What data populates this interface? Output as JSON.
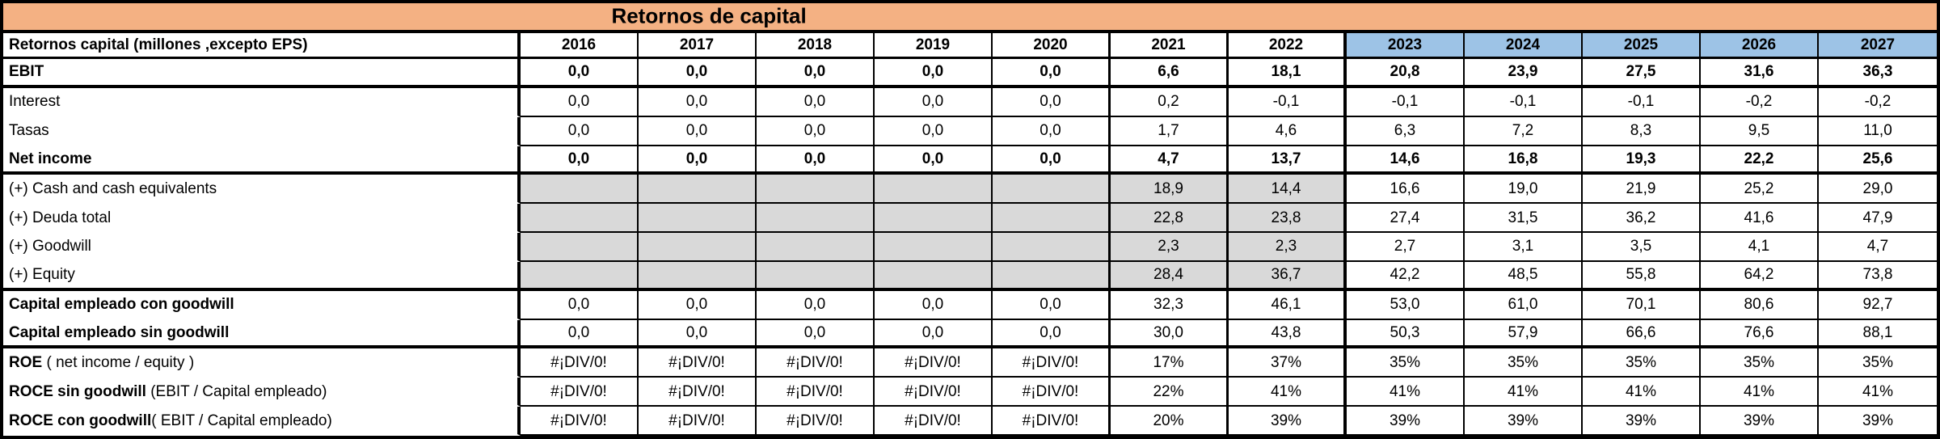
{
  "title": "Retornos de capital",
  "colors": {
    "title_bg": "#F4B183",
    "historic_year_bg": "#00B0F0",
    "forecast_year_bg": "#9DC3E6",
    "shaded_cell_bg": "#D9D9D9",
    "border": "#000000"
  },
  "table": {
    "header_label": "Retornos capital (millones ,excepto EPS)",
    "years": [
      "2016",
      "2017",
      "2018",
      "2019",
      "2020",
      "2021",
      "2022",
      "2023",
      "2024",
      "2025",
      "2026",
      "2027"
    ],
    "rows": [
      {
        "label_bold": "EBIT",
        "label_rest": "",
        "bold_values": true,
        "shaded": false,
        "thick_bottom": true,
        "values": [
          "0,0",
          "0,0",
          "0,0",
          "0,0",
          "0,0",
          "6,6",
          "18,1",
          "20,8",
          "23,9",
          "27,5",
          "31,6",
          "36,3"
        ]
      },
      {
        "label_bold": "",
        "label_rest": "Interest",
        "bold_values": false,
        "shaded": false,
        "thick_bottom": false,
        "values": [
          "0,0",
          "0,0",
          "0,0",
          "0,0",
          "0,0",
          "0,2",
          "-0,1",
          "-0,1",
          "-0,1",
          "-0,1",
          "-0,2",
          "-0,2"
        ]
      },
      {
        "label_bold": "",
        "label_rest": "Tasas",
        "bold_values": false,
        "shaded": false,
        "thick_bottom": false,
        "values": [
          "0,0",
          "0,0",
          "0,0",
          "0,0",
          "0,0",
          "1,7",
          "4,6",
          "6,3",
          "7,2",
          "8,3",
          "9,5",
          "11,0"
        ]
      },
      {
        "label_bold": "Net income",
        "label_rest": "",
        "bold_values": true,
        "shaded": false,
        "thick_bottom": true,
        "values": [
          "0,0",
          "0,0",
          "0,0",
          "0,0",
          "0,0",
          "4,7",
          "13,7",
          "14,6",
          "16,8",
          "19,3",
          "22,2",
          "25,6"
        ]
      },
      {
        "label_bold": "",
        "label_rest": "(+) Cash and cash equivalents",
        "bold_values": false,
        "shaded": true,
        "thick_bottom": false,
        "values": [
          "",
          "",
          "",
          "",
          "",
          "18,9",
          "14,4",
          "16,6",
          "19,0",
          "21,9",
          "25,2",
          "29,0"
        ]
      },
      {
        "label_bold": "",
        "label_rest": "(+) Deuda total",
        "bold_values": false,
        "shaded": true,
        "thick_bottom": false,
        "values": [
          "",
          "",
          "",
          "",
          "",
          "22,8",
          "23,8",
          "27,4",
          "31,5",
          "36,2",
          "41,6",
          "47,9"
        ]
      },
      {
        "label_bold": "",
        "label_rest": "(+) Goodwill",
        "bold_values": false,
        "shaded": true,
        "thick_bottom": false,
        "values": [
          "",
          "",
          "",
          "",
          "",
          "2,3",
          "2,3",
          "2,7",
          "3,1",
          "3,5",
          "4,1",
          "4,7"
        ]
      },
      {
        "label_bold": "",
        "label_rest": "(+) Equity",
        "bold_values": false,
        "shaded": true,
        "thick_bottom": true,
        "values": [
          "",
          "",
          "",
          "",
          "",
          "28,4",
          "36,7",
          "42,2",
          "48,5",
          "55,8",
          "64,2",
          "73,8"
        ]
      },
      {
        "label_bold": "Capital empleado con goodwill",
        "label_rest": "",
        "bold_values": false,
        "shaded": false,
        "thick_bottom": false,
        "values": [
          "0,0",
          "0,0",
          "0,0",
          "0,0",
          "0,0",
          "32,3",
          "46,1",
          "53,0",
          "61,0",
          "70,1",
          "80,6",
          "92,7"
        ]
      },
      {
        "label_bold": "Capital empleado sin goodwill",
        "label_rest": "",
        "bold_values": false,
        "shaded": false,
        "thick_bottom": true,
        "values": [
          "0,0",
          "0,0",
          "0,0",
          "0,0",
          "0,0",
          "30,0",
          "43,8",
          "50,3",
          "57,9",
          "66,6",
          "76,6",
          "88,1"
        ]
      },
      {
        "label_bold": "ROE",
        "label_rest": " ( net income / equity )",
        "bold_values": false,
        "shaded": false,
        "thick_bottom": false,
        "values": [
          "#¡DIV/0!",
          "#¡DIV/0!",
          "#¡DIV/0!",
          "#¡DIV/0!",
          "#¡DIV/0!",
          "17%",
          "37%",
          "35%",
          "35%",
          "35%",
          "35%",
          "35%"
        ]
      },
      {
        "label_bold": "ROCE sin goodwill",
        "label_rest": " (EBIT / Capital empleado)",
        "bold_values": false,
        "shaded": false,
        "thick_bottom": false,
        "values": [
          "#¡DIV/0!",
          "#¡DIV/0!",
          "#¡DIV/0!",
          "#¡DIV/0!",
          "#¡DIV/0!",
          "22%",
          "41%",
          "41%",
          "41%",
          "41%",
          "41%",
          "41%"
        ]
      },
      {
        "label_bold": "ROCE con goodwill",
        "label_rest": "( EBIT / Capital empleado)",
        "bold_values": false,
        "shaded": false,
        "thick_bottom": false,
        "values": [
          "#¡DIV/0!",
          "#¡DIV/0!",
          "#¡DIV/0!",
          "#¡DIV/0!",
          "#¡DIV/0!",
          "20%",
          "39%",
          "39%",
          "39%",
          "39%",
          "39%",
          "39%"
        ]
      }
    ]
  }
}
